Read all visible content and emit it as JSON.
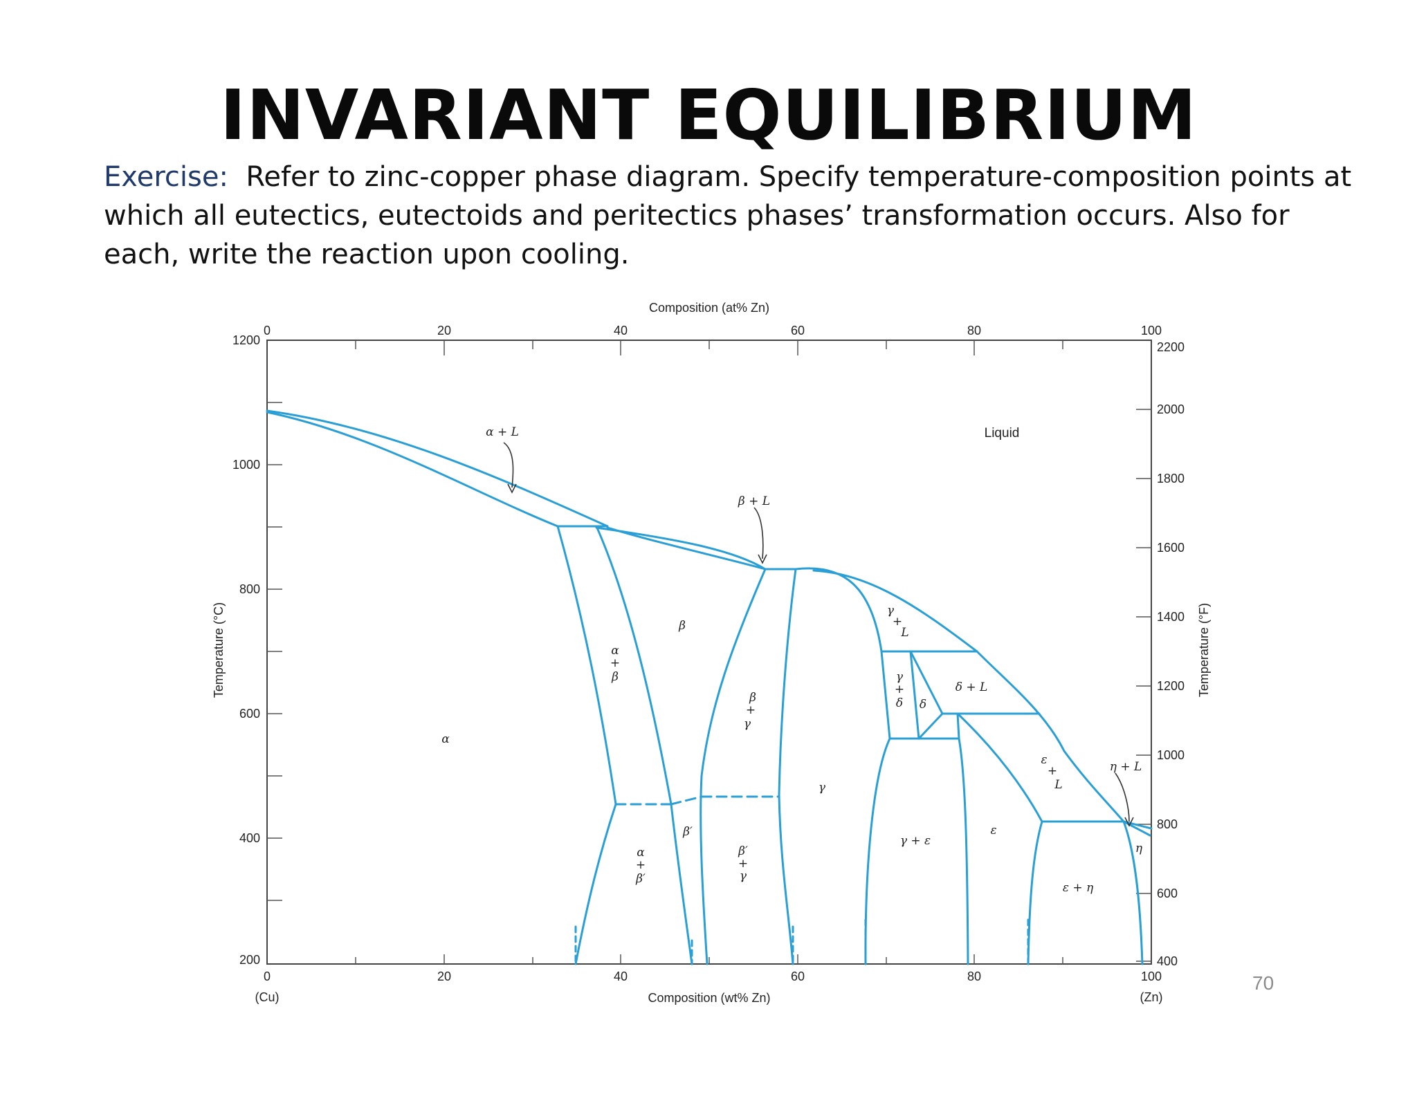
{
  "slide": {
    "title": "INVARIANT EQUILIBRIUM",
    "exercise_label": "Exercise:",
    "exercise_text": "Refer to zinc-copper phase diagram. Specify temperature-composition points at which all eutectics, eutectoids and peritectics phases’ transformation occurs. Also for each, write the reaction upon cooling.",
    "page_number": "70"
  },
  "diagram": {
    "line_color": "#2a9fd6",
    "top_axis_label": "Composition (at% Zn)",
    "bottom_axis_label": "Composition (wt% Zn)",
    "left_axis_label": "Temperature (°C)",
    "right_axis_label": "Temperature (°F)",
    "x_ticks": [
      "0",
      "20",
      "40",
      "60",
      "80",
      "100"
    ],
    "bottom_ends": {
      "left": "(Cu)",
      "right": "(Zn)"
    },
    "left_ticks": [
      "1200",
      "1000",
      "800",
      "600",
      "400",
      "200"
    ],
    "right_ticks": [
      "2200",
      "2000",
      "1800",
      "1600",
      "1400",
      "1200",
      "1000",
      "800",
      "600",
      "400"
    ],
    "phase_labels": {
      "alpha_L": "α + L",
      "beta_L": "β + L",
      "liquid": "Liquid",
      "gamma_L": [
        "γ",
        "+",
        "L"
      ],
      "beta": "β",
      "alpha_beta": [
        "α",
        "+",
        "β"
      ],
      "beta_gamma": [
        "β",
        "+",
        "γ"
      ],
      "gamma_delta": [
        "γ",
        "+",
        "δ"
      ],
      "delta": "δ",
      "delta_L": "δ + L",
      "alpha": "α",
      "gamma": "γ",
      "epsilon_L": [
        "ε",
        "+",
        "L"
      ],
      "eta_L": "η + L",
      "beta_prime": "β′",
      "alpha_beta_prime": [
        "α",
        "+",
        "β′"
      ],
      "beta_prime_gamma": [
        "β′",
        "+",
        "γ"
      ],
      "gamma_epsilon": "γ + ε",
      "epsilon": "ε",
      "eta": "η",
      "epsilon_eta": "ε + η"
    }
  }
}
